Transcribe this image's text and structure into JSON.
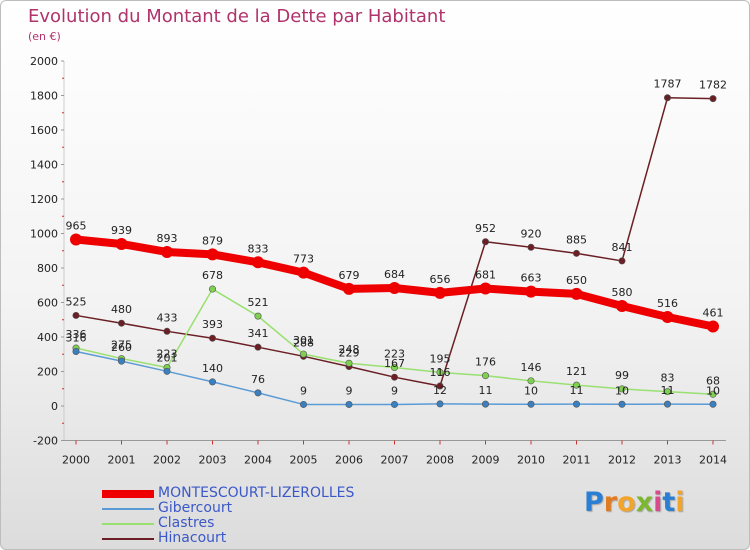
{
  "header": {
    "title": "Evolution du Montant de la Dette par Habitant",
    "unit": "(en €)"
  },
  "logo": {
    "text": "Proxiti",
    "letters": [
      {
        "ch": "P",
        "color": "#2a7fd4"
      },
      {
        "ch": "r",
        "color": "#e07b1f"
      },
      {
        "ch": "o",
        "color": "#f2a52a"
      },
      {
        "ch": "x",
        "color": "#7cb82f"
      },
      {
        "ch": "i",
        "color": "#d94a8c"
      },
      {
        "ch": "t",
        "color": "#2a7fd4"
      },
      {
        "ch": "i",
        "color": "#f2a52a"
      }
    ]
  },
  "chart_data": {
    "type": "line",
    "title": "Evolution du Montant de la Dette par Habitant",
    "ylabel": "(en €)",
    "xlabel": "",
    "ylim": [
      -200,
      2000
    ],
    "yticks": [
      -200,
      0,
      200,
      400,
      600,
      800,
      1000,
      1200,
      1400,
      1600,
      1800,
      2000
    ],
    "x": [
      "2000",
      "2001",
      "2002",
      "2003",
      "2004",
      "2005",
      "2006",
      "2007",
      "2008",
      "2009",
      "2010",
      "2011",
      "2012",
      "2013",
      "2014"
    ],
    "grid": false,
    "legend_position": "bottom-left",
    "series": [
      {
        "name": "MONTESCOURT-LIZEROLLES",
        "color": "#ee0000",
        "dot": "#ee0000",
        "values": [
          965,
          939,
          893,
          879,
          833,
          773,
          679,
          684,
          656,
          681,
          663,
          650,
          580,
          516,
          461
        ]
      },
      {
        "name": "Gibercourt",
        "color": "#5b9bd5",
        "dot": "#3a7fc0",
        "values": [
          316,
          260,
          201,
          140,
          76,
          9,
          9,
          9,
          12,
          11,
          10,
          11,
          10,
          11,
          10
        ]
      },
      {
        "name": "Clastres",
        "color": "#99e070",
        "dot": "#7fd04f",
        "values": [
          336,
          275,
          223,
          678,
          521,
          301,
          248,
          223,
          195,
          176,
          146,
          121,
          99,
          83,
          68
        ]
      },
      {
        "name": "Hinacourt",
        "color": "#6b1f24",
        "dot": "#6b1f24",
        "values": [
          525,
          480,
          433,
          393,
          341,
          288,
          229,
          167,
          116,
          952,
          920,
          885,
          841,
          1787,
          1782
        ]
      }
    ]
  }
}
